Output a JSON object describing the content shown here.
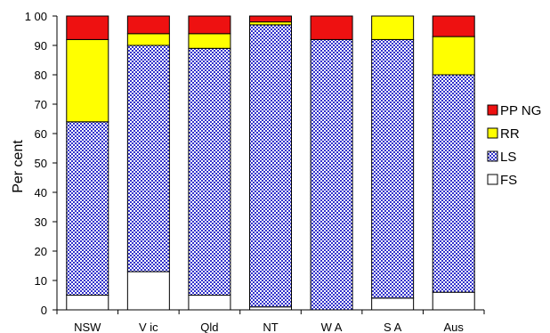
{
  "chart_data": {
    "type": "bar",
    "stacked": true,
    "title": "",
    "xlabel": "",
    "ylabel": "Per cent",
    "ylim": [
      0,
      100
    ],
    "yticks": [
      0,
      10,
      20,
      30,
      40,
      50,
      60,
      70,
      80,
      90,
      100
    ],
    "ytick_labels": [
      "0",
      "10",
      "20",
      "30",
      "40",
      "50",
      "60",
      "70",
      "80",
      "90",
      "1 00"
    ],
    "grid": false,
    "legend_position": "right",
    "categories": [
      "NSW",
      "V ic",
      "Qld",
      "NT",
      "W A",
      "S A",
      "Aus"
    ],
    "series": [
      {
        "name": "FS",
        "color": "#ffffff",
        "pattern": "none",
        "values": [
          5,
          13,
          5,
          1,
          0,
          4,
          6
        ]
      },
      {
        "name": "LS",
        "color": "#3333cc",
        "pattern": "hatched",
        "values": [
          59,
          77,
          84,
          96,
          92,
          88,
          74
        ]
      },
      {
        "name": "RR",
        "color": "#ffff00",
        "pattern": "none",
        "values": [
          28,
          4,
          5,
          1,
          0,
          8,
          13
        ]
      },
      {
        "name": "PP NG",
        "color": "#ee1111",
        "pattern": "none",
        "values": [
          8,
          6,
          6,
          2,
          8,
          0,
          7
        ]
      }
    ],
    "legend_order": [
      "PP NG",
      "RR",
      "LS",
      "FS"
    ]
  }
}
